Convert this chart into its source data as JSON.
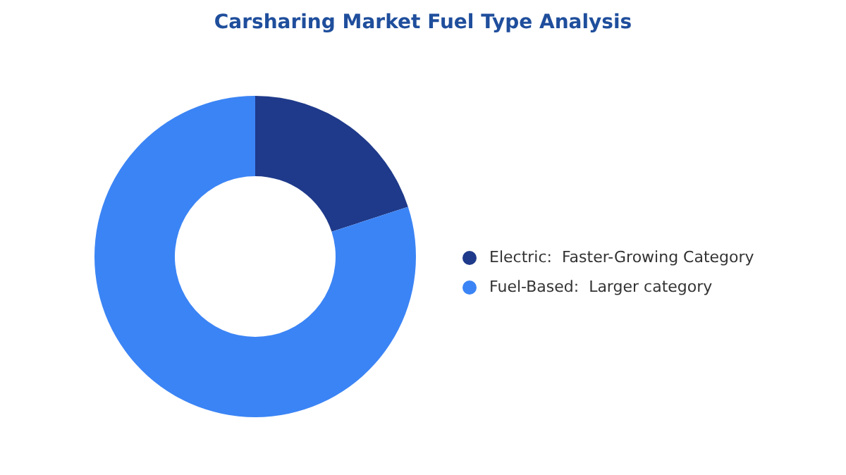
{
  "chart_data": {
    "type": "donut",
    "title": "Carsharing Market Fuel Type Analysis",
    "categories": [
      "Electric:  Faster-Growing Category",
      "Fuel-Based:  Larger category"
    ],
    "values": [
      20,
      80
    ],
    "colors": [
      "#1f3a8a",
      "#3b84f5"
    ],
    "legend": "right"
  }
}
